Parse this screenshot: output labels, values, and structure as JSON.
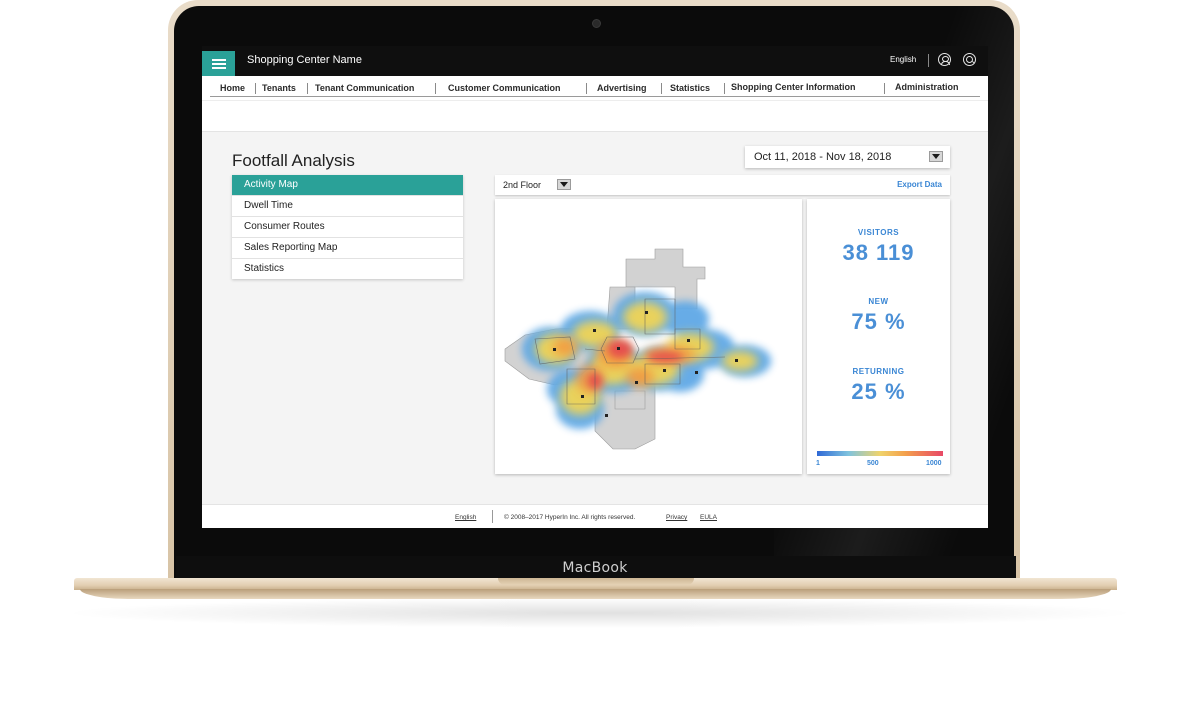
{
  "device": {
    "brand": "MacBook",
    "frame_color": "#e2d1b7"
  },
  "header": {
    "app_title": "Shopping Center Name",
    "language": "English",
    "accent_color": "#2aa198",
    "icons": [
      "menu-icon",
      "user-icon",
      "search-icon"
    ]
  },
  "nav": {
    "items": [
      {
        "label": "Home"
      },
      {
        "label": "Tenants"
      },
      {
        "label": "Tenant Communication"
      },
      {
        "label": "Customer Communication"
      },
      {
        "label": "Advertising"
      },
      {
        "label": "Statistics"
      },
      {
        "label": "Shopping Center Information"
      },
      {
        "label": "Administration"
      }
    ]
  },
  "page": {
    "title": "Footfall Analysis",
    "date_range": "Oct 11, 2018 - Nov 18, 2018"
  },
  "sidebar": {
    "items": [
      {
        "label": "Activity Map",
        "active": true
      },
      {
        "label": "Dwell Time",
        "active": false
      },
      {
        "label": "Consumer Routes",
        "active": false
      },
      {
        "label": "Sales Reporting Map",
        "active": false
      },
      {
        "label": "Statistics",
        "active": false
      }
    ]
  },
  "map": {
    "floor": "2nd Floor",
    "export_label": "Export Data"
  },
  "stats": {
    "visitors_label": "VISITORS",
    "visitors_value": "38 119",
    "new_label": "NEW",
    "new_value": "75 %",
    "returning_label": "RETURNING",
    "returning_value": "25 %",
    "scale_min": "1",
    "scale_mid": "500",
    "scale_max": "1000",
    "value_color": "#4a8fd6"
  },
  "footer": {
    "language": "English",
    "copyright": "© 2008–2017 HyperIn Inc. All rights reserved.",
    "privacy": "Privacy",
    "eula": "EULA"
  }
}
